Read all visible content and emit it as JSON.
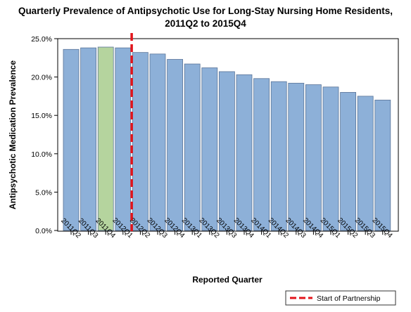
{
  "chart_data": {
    "type": "bar",
    "title": "Quarterly Prevalence of Antipsychotic Use for Long-Stay Nursing Home Residents,",
    "subtitle": "2011Q2 to 2015Q4",
    "xlabel": "Reported Quarter",
    "ylabel": "Antipsychotic Medication Prevalence",
    "ylim": [
      0,
      25
    ],
    "yticks": [
      "0.0%",
      "5.0%",
      "10.0%",
      "15.0%",
      "20.0%",
      "25.0%"
    ],
    "ytick_values": [
      0,
      5,
      10,
      15,
      20,
      25
    ],
    "categories": [
      "2011Q2",
      "2011Q3",
      "2011Q4",
      "2012Q1",
      "2012Q2",
      "2012Q3",
      "2012Q4",
      "2013Q1",
      "2013Q2",
      "2013Q3",
      "2013Q4",
      "2014Q1",
      "2014Q2",
      "2014Q3",
      "2014Q4",
      "2015Q1",
      "2015Q2",
      "2015Q3",
      "2015Q4"
    ],
    "values": [
      23.6,
      23.8,
      23.9,
      23.8,
      23.2,
      23.0,
      22.3,
      21.7,
      21.2,
      20.7,
      20.3,
      19.8,
      19.4,
      19.2,
      19.0,
      18.7,
      18.0,
      17.5,
      17.0
    ],
    "highlight_index": 2,
    "bar_color": "#8db0d8",
    "highlight_color": "#b5d49e",
    "bar_stroke": "#5a7498",
    "reference_line": {
      "between": [
        "2012Q1",
        "2012Q2"
      ],
      "color": "#e2141b",
      "label": "Start of Partnership"
    },
    "legend": {
      "position": "bottom-right",
      "entries": [
        "Start of Partnership"
      ]
    },
    "grid": false
  }
}
